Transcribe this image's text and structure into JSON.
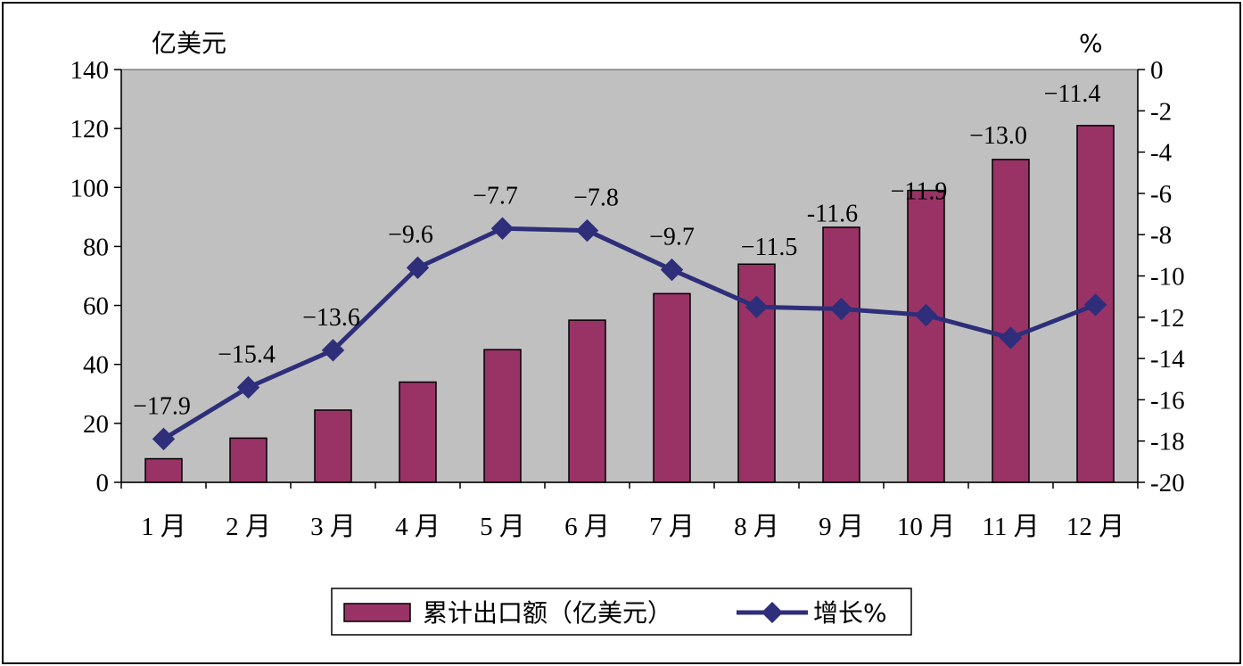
{
  "chart_data": {
    "type": "bar",
    "categories": [
      "1 月",
      "2 月",
      "3 月",
      "4 月",
      "5 月",
      "6 月",
      "7 月",
      "8 月",
      "9 月",
      "10 月",
      "11 月",
      "12 月"
    ],
    "left_axis": {
      "unit": "亿美元",
      "min": 0,
      "max": 140,
      "step": 20,
      "ticks": [
        "0",
        "20",
        "40",
        "60",
        "80",
        "100",
        "120",
        "140"
      ]
    },
    "right_axis": {
      "unit": "%",
      "min": -20,
      "max": 0,
      "step": 2,
      "ticks": [
        "-20",
        "-18",
        "-16",
        "-14",
        "-12",
        "-10",
        "-8",
        "-6",
        "-4",
        "-2",
        "0"
      ]
    },
    "series": [
      {
        "name": "累计出口额（亿美元）",
        "type": "bar",
        "axis": "left",
        "color": "#993366",
        "values": [
          8,
          15,
          24.5,
          34,
          45,
          55,
          64,
          74,
          86.5,
          99,
          109.5,
          121
        ]
      },
      {
        "name": "增长%",
        "type": "line",
        "axis": "right",
        "color": "#2E2E7A",
        "marker": "diamond",
        "values": [
          -17.9,
          -15.4,
          -13.6,
          -9.6,
          -7.7,
          -7.8,
          -9.7,
          -11.5,
          -11.6,
          -11.9,
          -13.0,
          -11.4
        ],
        "labels": [
          "−17.9",
          "−15.4",
          "−13.6",
          "−9.6",
          "−7.7",
          "−7.8",
          "−9.7",
          "−11.5",
          "-11.6",
          "−11.9",
          "−13.0",
          "−11.4"
        ]
      }
    ],
    "plot_background": "#C0C0C0",
    "grid": false,
    "legend_position": "bottom"
  }
}
